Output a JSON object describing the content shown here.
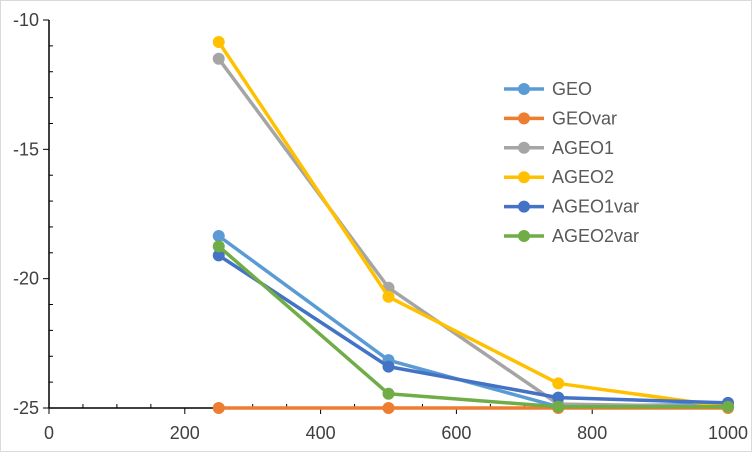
{
  "chart_data": {
    "type": "line",
    "title": "",
    "xlabel": "",
    "ylabel": "",
    "xlim": [
      0,
      1000
    ],
    "ylim": [
      -25,
      -10
    ],
    "x_ticks": [
      0,
      200,
      400,
      600,
      800,
      1000
    ],
    "y_ticks": [
      -10,
      -15,
      -20,
      -25
    ],
    "grid": false,
    "legend_position": "right",
    "series": [
      {
        "name": "GEO",
        "color": "#5B9BD5",
        "x": [
          250,
          500,
          750,
          1000
        ],
        "y": [
          -18.35,
          -23.15,
          -24.95,
          -24.85
        ]
      },
      {
        "name": "GEOvar",
        "color": "#ED7D31",
        "x": [
          250,
          500,
          750,
          1000
        ],
        "y": [
          -25.0,
          -25.0,
          -25.0,
          -25.0
        ]
      },
      {
        "name": "AGEO1",
        "color": "#A5A5A5",
        "x": [
          250,
          500,
          750,
          1000
        ],
        "y": [
          -11.5,
          -20.35,
          -24.85,
          -24.95
        ]
      },
      {
        "name": "AGEO2",
        "color": "#FFC000",
        "x": [
          250,
          500,
          750,
          1000
        ],
        "y": [
          -10.85,
          -20.7,
          -24.05,
          -24.95
        ]
      },
      {
        "name": "AGEO1var",
        "color": "#4472C4",
        "x": [
          250,
          500,
          750,
          1000
        ],
        "y": [
          -19.1,
          -23.4,
          -24.6,
          -24.8
        ]
      },
      {
        "name": "AGEO2var",
        "color": "#70AD47",
        "x": [
          250,
          500,
          750,
          1000
        ],
        "y": [
          -18.75,
          -24.45,
          -24.95,
          -24.95
        ]
      }
    ]
  }
}
